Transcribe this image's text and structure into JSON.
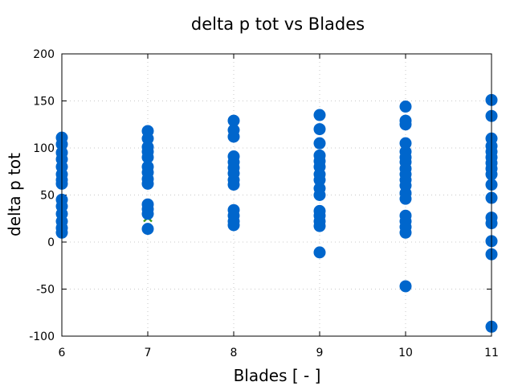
{
  "chart_data": {
    "type": "scatter",
    "title": "delta p tot vs Blades",
    "xlabel": "Blades [ - ]",
    "ylabel": "delta p tot",
    "xlim": [
      6,
      11
    ],
    "ylim": [
      -100,
      200
    ],
    "xticks": [
      6,
      7,
      8,
      9,
      10,
      11
    ],
    "yticks": [
      -100,
      -50,
      0,
      50,
      100,
      150,
      200
    ],
    "grid": true,
    "series": [
      {
        "color": "#3c9a1a",
        "marker": "cross",
        "points": [
          {
            "x": 6,
            "y": 100
          },
          {
            "x": 6,
            "y": 84
          },
          {
            "x": 6,
            "y": 38
          },
          {
            "x": 6,
            "y": 25
          },
          {
            "x": 7,
            "y": 104
          },
          {
            "x": 7,
            "y": 100
          },
          {
            "x": 7,
            "y": 85
          },
          {
            "x": 7,
            "y": 26
          }
        ]
      },
      {
        "color": "#0066cc",
        "marker": "circle",
        "points": [
          {
            "x": 6,
            "y": 111
          },
          {
            "x": 6,
            "y": 104
          },
          {
            "x": 6,
            "y": 95
          },
          {
            "x": 6,
            "y": 88
          },
          {
            "x": 6,
            "y": 80
          },
          {
            "x": 6,
            "y": 72
          },
          {
            "x": 6,
            "y": 66
          },
          {
            "x": 6,
            "y": 62
          },
          {
            "x": 6,
            "y": 45
          },
          {
            "x": 6,
            "y": 38
          },
          {
            "x": 6,
            "y": 30
          },
          {
            "x": 6,
            "y": 22
          },
          {
            "x": 6,
            "y": 15
          },
          {
            "x": 6,
            "y": 10
          },
          {
            "x": 7,
            "y": 118
          },
          {
            "x": 7,
            "y": 110
          },
          {
            "x": 7,
            "y": 101
          },
          {
            "x": 7,
            "y": 96
          },
          {
            "x": 7,
            "y": 90
          },
          {
            "x": 7,
            "y": 80
          },
          {
            "x": 7,
            "y": 74
          },
          {
            "x": 7,
            "y": 67
          },
          {
            "x": 7,
            "y": 62
          },
          {
            "x": 7,
            "y": 40
          },
          {
            "x": 7,
            "y": 35
          },
          {
            "x": 7,
            "y": 30
          },
          {
            "x": 7,
            "y": 14
          },
          {
            "x": 8,
            "y": 129
          },
          {
            "x": 8,
            "y": 119
          },
          {
            "x": 8,
            "y": 112
          },
          {
            "x": 8,
            "y": 91
          },
          {
            "x": 8,
            "y": 85
          },
          {
            "x": 8,
            "y": 79
          },
          {
            "x": 8,
            "y": 73
          },
          {
            "x": 8,
            "y": 66
          },
          {
            "x": 8,
            "y": 61
          },
          {
            "x": 8,
            "y": 34
          },
          {
            "x": 8,
            "y": 28
          },
          {
            "x": 8,
            "y": 22
          },
          {
            "x": 8,
            "y": 18
          },
          {
            "x": 9,
            "y": 135
          },
          {
            "x": 9,
            "y": 120
          },
          {
            "x": 9,
            "y": 105
          },
          {
            "x": 9,
            "y": 92
          },
          {
            "x": 9,
            "y": 86
          },
          {
            "x": 9,
            "y": 80
          },
          {
            "x": 9,
            "y": 72
          },
          {
            "x": 9,
            "y": 66
          },
          {
            "x": 9,
            "y": 57
          },
          {
            "x": 9,
            "y": 50
          },
          {
            "x": 9,
            "y": 33
          },
          {
            "x": 9,
            "y": 28
          },
          {
            "x": 9,
            "y": 22
          },
          {
            "x": 9,
            "y": 17
          },
          {
            "x": 9,
            "y": -11
          },
          {
            "x": 10,
            "y": 144
          },
          {
            "x": 10,
            "y": 129
          },
          {
            "x": 10,
            "y": 125
          },
          {
            "x": 10,
            "y": 105
          },
          {
            "x": 10,
            "y": 96
          },
          {
            "x": 10,
            "y": 90
          },
          {
            "x": 10,
            "y": 85
          },
          {
            "x": 10,
            "y": 78
          },
          {
            "x": 10,
            "y": 72
          },
          {
            "x": 10,
            "y": 66
          },
          {
            "x": 10,
            "y": 60
          },
          {
            "x": 10,
            "y": 52
          },
          {
            "x": 10,
            "y": 46
          },
          {
            "x": 10,
            "y": 28
          },
          {
            "x": 10,
            "y": 22
          },
          {
            "x": 10,
            "y": 16
          },
          {
            "x": 10,
            "y": 10
          },
          {
            "x": 10,
            "y": -47
          },
          {
            "x": 11,
            "y": 151
          },
          {
            "x": 11,
            "y": 134
          },
          {
            "x": 11,
            "y": 110
          },
          {
            "x": 11,
            "y": 102
          },
          {
            "x": 11,
            "y": 96
          },
          {
            "x": 11,
            "y": 90
          },
          {
            "x": 11,
            "y": 84
          },
          {
            "x": 11,
            "y": 78
          },
          {
            "x": 11,
            "y": 72
          },
          {
            "x": 11,
            "y": 61
          },
          {
            "x": 11,
            "y": 47
          },
          {
            "x": 11,
            "y": 26
          },
          {
            "x": 11,
            "y": 20
          },
          {
            "x": 11,
            "y": 1
          },
          {
            "x": 11,
            "y": -13
          },
          {
            "x": 11,
            "y": -90
          }
        ]
      }
    ]
  }
}
